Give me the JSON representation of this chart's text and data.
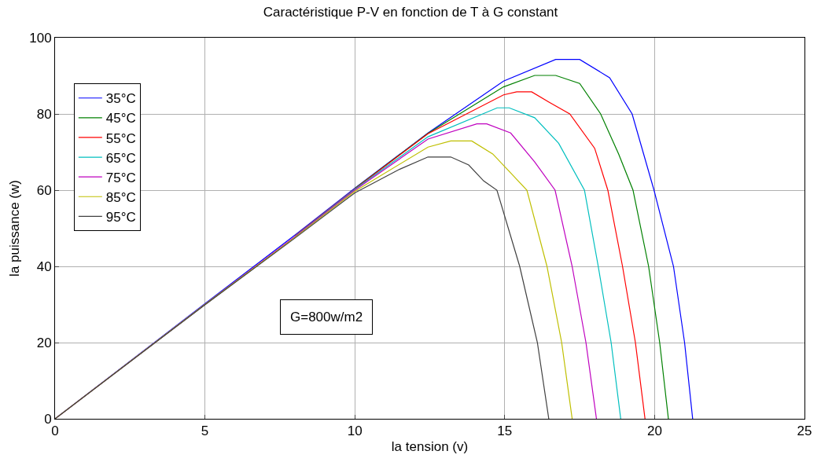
{
  "chart_data": {
    "type": "line",
    "title": "Caractéristique P-V en fonction de T à G constant",
    "xlabel": "la tension (v)",
    "ylabel": "la puissance (w)",
    "xlim": [
      0,
      25
    ],
    "xticks": [
      0,
      5,
      10,
      15,
      20,
      25
    ],
    "ylim": [
      0,
      100
    ],
    "yticks": [
      0,
      20,
      40,
      60,
      80,
      100
    ],
    "grid": true,
    "legend": "top left",
    "marker": "none",
    "line_style": "solid",
    "annotations": [
      "G=800w/m2"
    ],
    "series": [
      {
        "name": "35°C",
        "color": "#0000ff",
        "x": [
          0,
          5,
          8,
          10,
          12.44,
          14.96,
          16.7,
          17.5,
          18.5,
          19.25,
          19.98,
          20.63,
          21.0,
          21.27
        ],
        "values": [
          0,
          30.2,
          48.2,
          60.5,
          75,
          88.6,
          94.3,
          94.3,
          89.5,
          80,
          60,
          40,
          20,
          0
        ]
      },
      {
        "name": "45°C",
        "color": "#008000",
        "x": [
          10,
          12.44,
          14.96,
          16.0,
          16.7,
          17.5,
          18.2,
          18.8,
          19.28,
          19.8,
          20.17,
          20.46
        ],
        "values": [
          60.4,
          74.9,
          87.1,
          90.1,
          90.1,
          88,
          80,
          69.5,
          60,
          40,
          20,
          0
        ]
      },
      {
        "name": "55°C",
        "color": "#ff0000",
        "x": [
          8,
          10,
          12.44,
          14.96,
          15.4,
          15.9,
          16.5,
          17.17,
          18.0,
          18.44,
          18.93,
          19.36,
          19.68
        ],
        "values": [
          48,
          60.3,
          74.8,
          85,
          85.8,
          85.8,
          83,
          80,
          71,
          60,
          40,
          20,
          0
        ]
      },
      {
        "name": "65°C",
        "color": "#00bfbf",
        "x": [
          8,
          10,
          12.44,
          14.75,
          15.15,
          16.0,
          16.8,
          17.66,
          18.12,
          18.55,
          18.87
        ],
        "values": [
          47.9,
          60.2,
          74,
          81.6,
          81.6,
          79,
          72.3,
          60,
          40,
          20,
          0
        ]
      },
      {
        "name": "75°C",
        "color": "#bf00bf",
        "x": [
          0,
          5,
          8,
          10,
          12.44,
          14.07,
          14.4,
          15.2,
          16.0,
          16.68,
          17.25,
          17.71,
          18.06
        ],
        "values": [
          0,
          30,
          47.8,
          60,
          73.4,
          77.4,
          77.4,
          75,
          67.4,
          60,
          40,
          20,
          0
        ]
      },
      {
        "name": "85°C",
        "color": "#bfbf00",
        "x": [
          0,
          5,
          8,
          10,
          12.44,
          13.2,
          13.9,
          14.6,
          15.2,
          15.74,
          16.41,
          16.9,
          17.25
        ],
        "values": [
          0,
          30,
          47.6,
          59.7,
          71.3,
          72.9,
          72.9,
          69.5,
          64.5,
          60,
          40,
          20,
          0
        ]
      },
      {
        "name": "95°C",
        "color": "#404040",
        "x": [
          0,
          5,
          8,
          10,
          11.5,
          12.44,
          13.2,
          13.8,
          14.3,
          14.74,
          15.5,
          16.09,
          16.47
        ],
        "values": [
          0,
          29.9,
          47.4,
          59.3,
          65.5,
          68.7,
          68.7,
          66.6,
          62.4,
          60,
          40,
          20,
          0
        ]
      }
    ]
  }
}
